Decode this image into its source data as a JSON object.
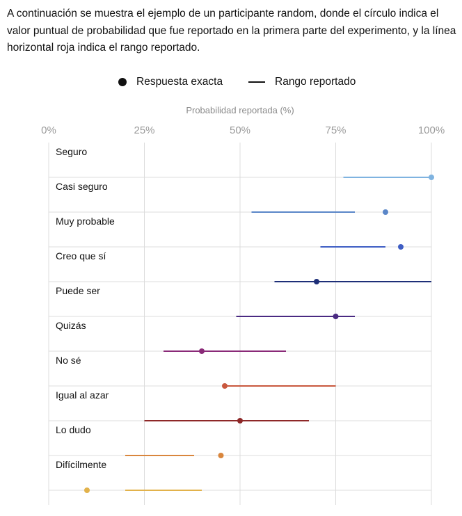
{
  "intro": "A continuación se muestra el ejemplo de un participante random, donde el círculo indica el valor puntual de probabilidad que fue reportado en la primera parte del experimento, y la línea horizontal roja indica el rango reportado.",
  "legend": {
    "point_label": "Respuesta exacta",
    "range_label": "Rango reportado"
  },
  "chart_data": {
    "type": "dot-range",
    "xlabel": "Probabilidad reportada (%)",
    "xlim": [
      0,
      100
    ],
    "ticks": [
      0,
      25,
      50,
      75,
      100
    ],
    "tick_labels": [
      "0%",
      "25%",
      "50%",
      "75%",
      "100%"
    ],
    "rows": [
      {
        "name": "Seguro",
        "point": 100,
        "range": [
          77,
          100
        ],
        "color": "#7fb3e0"
      },
      {
        "name": "Casi seguro",
        "point": 88,
        "range": [
          53,
          80
        ],
        "color": "#5a86c8"
      },
      {
        "name": "Muy probable",
        "point": 92,
        "range": [
          71,
          88
        ],
        "color": "#3f5ec4"
      },
      {
        "name": "Creo que sí",
        "point": 70,
        "range": [
          59,
          100
        ],
        "color": "#1e2f78"
      },
      {
        "name": "Puede ser",
        "point": 75,
        "range": [
          49,
          80
        ],
        "color": "#4a2a82"
      },
      {
        "name": "Quizás",
        "point": 40,
        "range": [
          30,
          62
        ],
        "color": "#8a2a78"
      },
      {
        "name": "No sé",
        "point": 46,
        "range": [
          46,
          75
        ],
        "color": "#c9583e"
      },
      {
        "name": "Igual al azar",
        "point": 50,
        "range": [
          25,
          68
        ],
        "color": "#8e2828"
      },
      {
        "name": "Lo dudo",
        "point": 45,
        "range": [
          20,
          38
        ],
        "color": "#d9863d"
      },
      {
        "name": "Difícilmente",
        "point": 10,
        "range": [
          20,
          40
        ],
        "color": "#e2b24b"
      }
    ]
  }
}
